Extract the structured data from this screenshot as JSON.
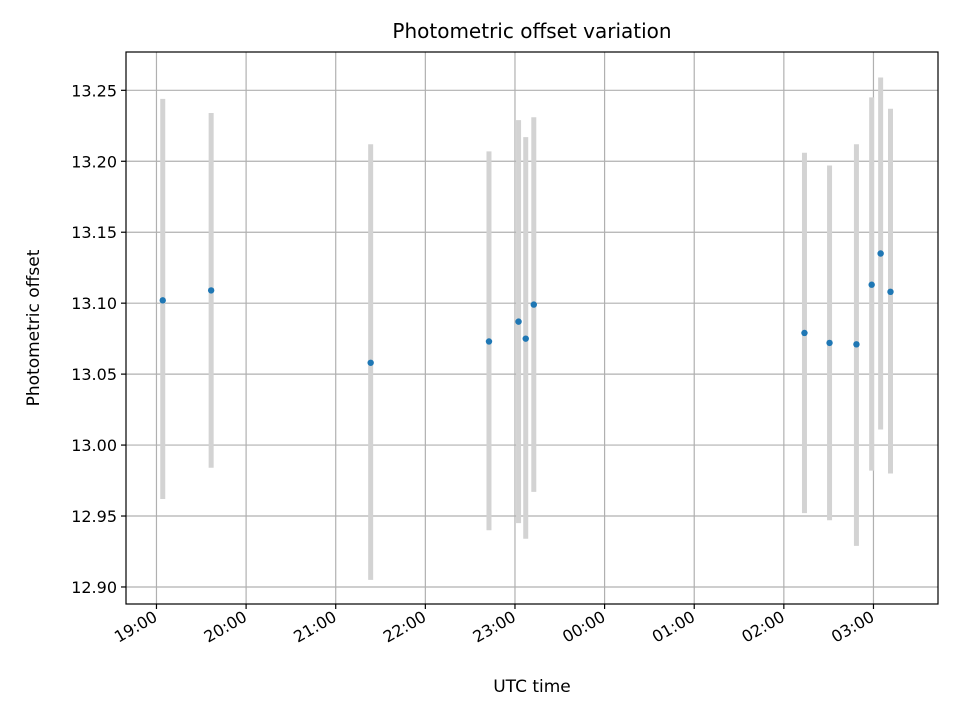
{
  "chart_data": {
    "type": "scatter",
    "title": "Photometric offset variation",
    "xlabel": "UTC time",
    "ylabel": "Photometric offset",
    "x_tick_labels": [
      "19:00",
      "20:00",
      "21:00",
      "22:00",
      "23:00",
      "00:00",
      "01:00",
      "02:00",
      "03:00"
    ],
    "x_tick_hours": [
      0,
      1,
      2,
      3,
      4,
      5,
      6,
      7,
      8
    ],
    "xlim_hours": [
      -0.34,
      8.72
    ],
    "y_ticks": [
      12.9,
      12.95,
      13.0,
      13.05,
      13.1,
      13.15,
      13.2,
      13.25
    ],
    "y_tick_labels": [
      "12.90",
      "12.95",
      "13.00",
      "13.05",
      "13.10",
      "13.15",
      "13.20",
      "13.25"
    ],
    "ylim": [
      12.888,
      13.277
    ],
    "grid": true,
    "marker_color": "#1f77b4",
    "errorbar_color": "#d3d3d3",
    "points": [
      {
        "time": "19:04",
        "t_hours": 0.07,
        "y": 13.102,
        "ylow": 12.962,
        "yhigh": 13.244
      },
      {
        "time": "19:37",
        "t_hours": 0.61,
        "y": 13.109,
        "ylow": 12.984,
        "yhigh": 13.234
      },
      {
        "time": "21:23",
        "t_hours": 2.39,
        "y": 13.058,
        "ylow": 12.905,
        "yhigh": 13.212
      },
      {
        "time": "22:42",
        "t_hours": 3.71,
        "y": 13.073,
        "ylow": 12.94,
        "yhigh": 13.207
      },
      {
        "time": "23:02",
        "t_hours": 4.04,
        "y": 13.087,
        "ylow": 12.945,
        "yhigh": 13.229
      },
      {
        "time": "23:07",
        "t_hours": 4.12,
        "y": 13.075,
        "ylow": 12.934,
        "yhigh": 13.217
      },
      {
        "time": "23:13",
        "t_hours": 4.21,
        "y": 13.099,
        "ylow": 12.967,
        "yhigh": 13.231
      },
      {
        "time": "02:14",
        "t_hours": 7.23,
        "y": 13.079,
        "ylow": 12.952,
        "yhigh": 13.206
      },
      {
        "time": "02:31",
        "t_hours": 7.51,
        "y": 13.072,
        "ylow": 12.947,
        "yhigh": 13.197
      },
      {
        "time": "02:49",
        "t_hours": 7.81,
        "y": 13.071,
        "ylow": 12.929,
        "yhigh": 13.212
      },
      {
        "time": "02:59",
        "t_hours": 7.98,
        "y": 13.113,
        "ylow": 12.982,
        "yhigh": 13.245
      },
      {
        "time": "03:05",
        "t_hours": 8.08,
        "y": 13.135,
        "ylow": 13.011,
        "yhigh": 13.259
      },
      {
        "time": "03:11",
        "t_hours": 8.19,
        "y": 13.108,
        "ylow": 12.98,
        "yhigh": 13.237
      }
    ]
  }
}
